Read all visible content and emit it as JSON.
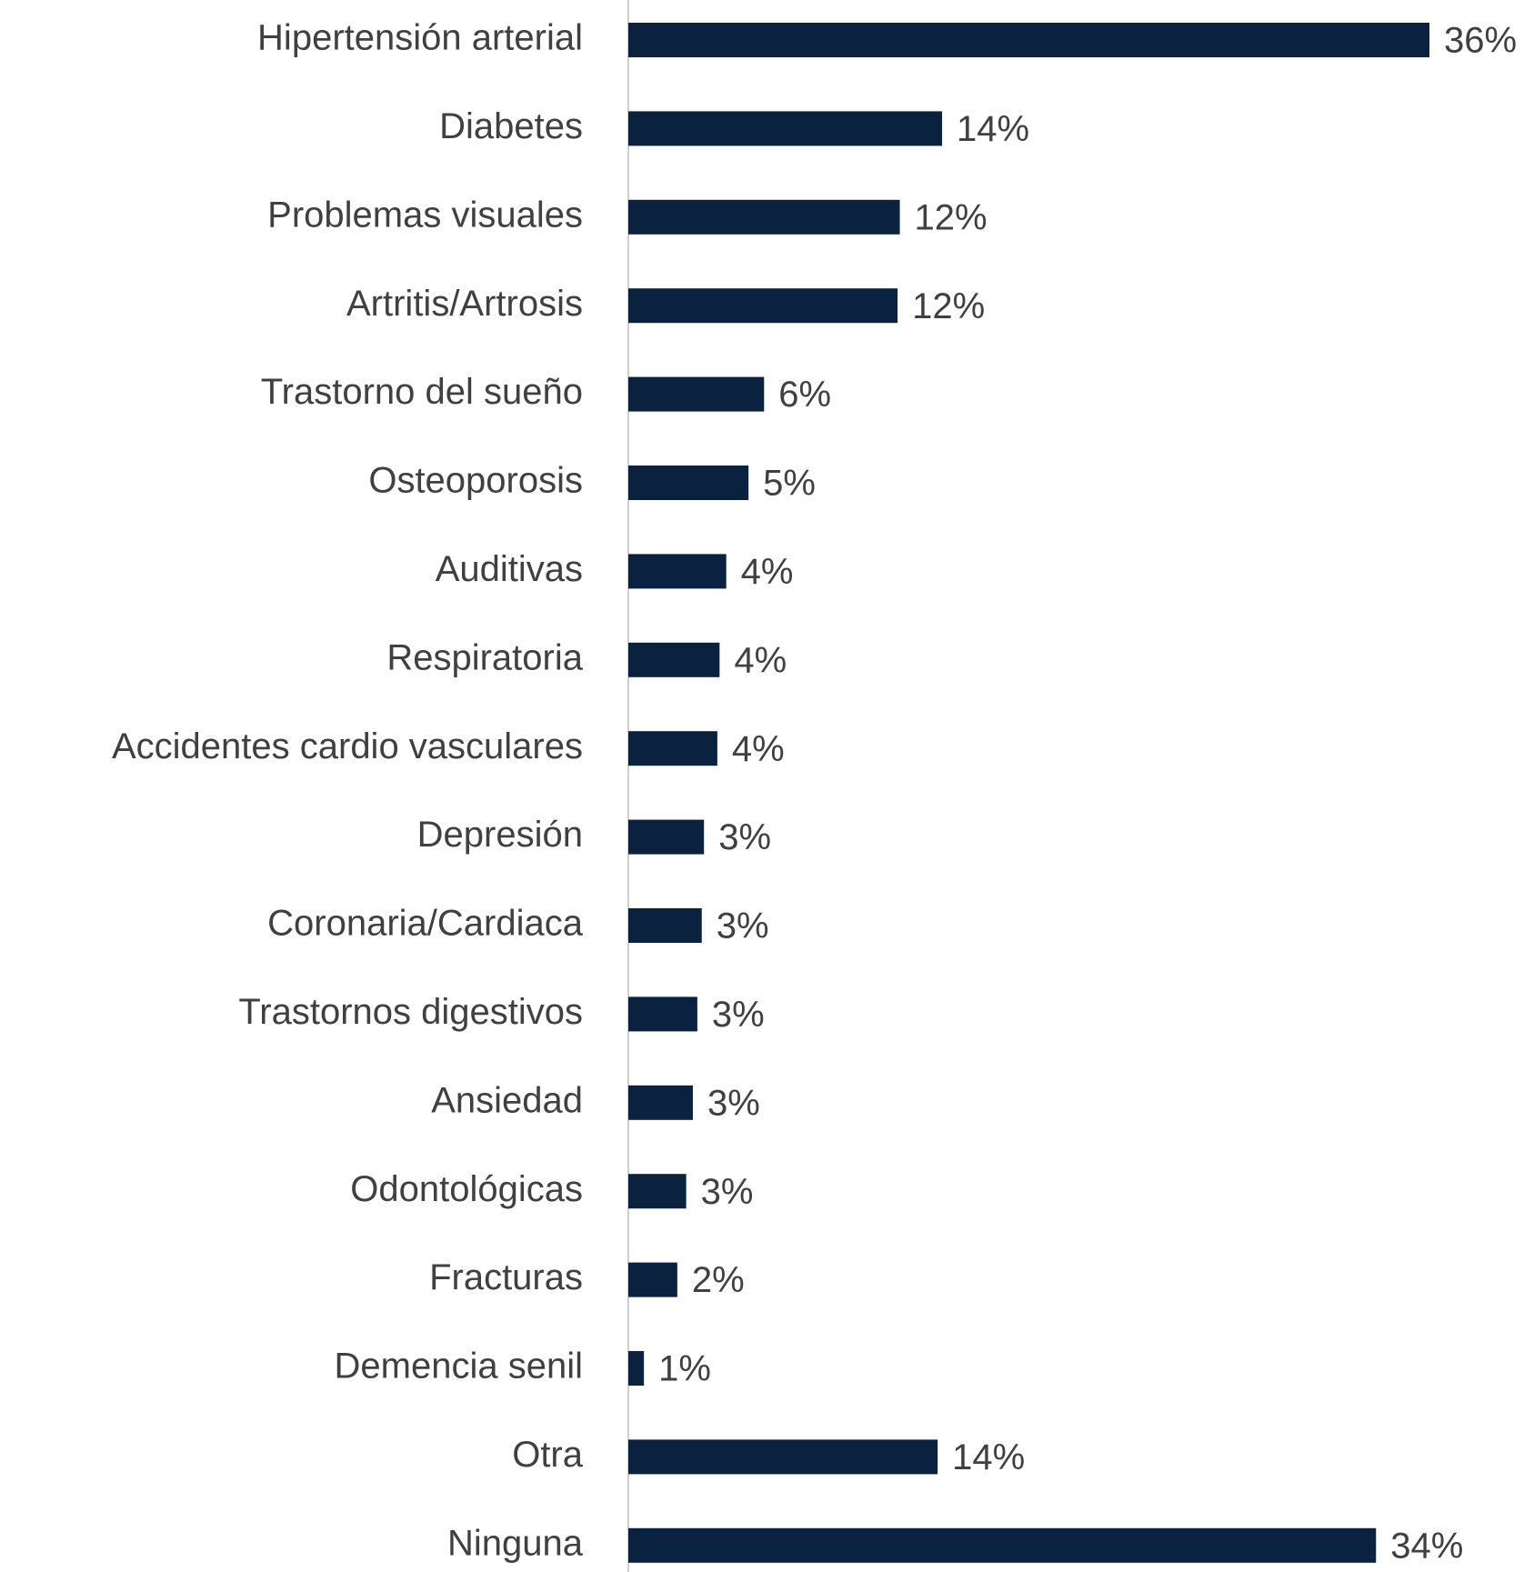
{
  "chart_data": {
    "type": "barh",
    "categories": [
      "Hipertensión arterial",
      "Diabetes",
      "Problemas visuales",
      "Artritis/Artrosis",
      "Trastorno del sueño",
      "Osteoporosis",
      "Auditivas",
      "Respiratoria",
      "Accidentes cardio vasculares",
      "Depresión",
      "Coronaria/Cardiaca",
      "Trastornos digestivos",
      "Ansiedad",
      "Odontológicas",
      "Fracturas",
      "Demencia senil",
      "Otra",
      "Ninguna"
    ],
    "values": [
      36,
      14.1,
      12.2,
      12.1,
      6.1,
      5.4,
      4.4,
      4.1,
      4.0,
      3.4,
      3.3,
      3.1,
      2.9,
      2.6,
      2.2,
      0.7,
      13.9,
      33.6
    ],
    "value_labels": [
      "36%",
      "14%",
      "12%",
      "12%",
      "6%",
      "5%",
      "4%",
      "4%",
      "4%",
      "3%",
      "3%",
      "3%",
      "3%",
      "3%",
      "2%",
      "1%",
      "14%",
      "34%"
    ],
    "color": "#0a2240"
  }
}
